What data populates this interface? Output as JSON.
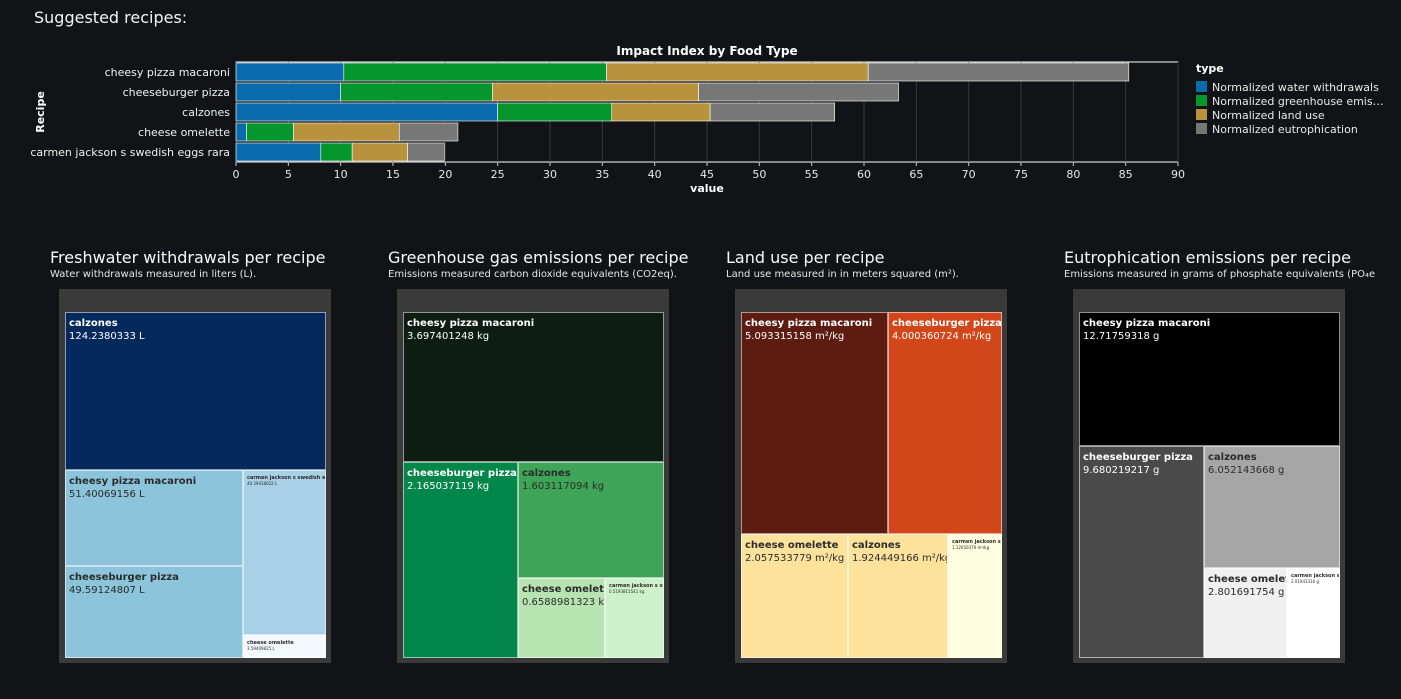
{
  "page": {
    "heading": "Suggested recipes:"
  },
  "chart_data": [
    {
      "type": "bar",
      "stacked": true,
      "orientation": "horizontal",
      "title": "Impact Index by Food Type",
      "xlabel": "value",
      "ylabel": "Recipe",
      "xlim": [
        0,
        90
      ],
      "xticks": [
        0,
        5,
        10,
        15,
        20,
        25,
        30,
        35,
        40,
        45,
        50,
        55,
        60,
        65,
        70,
        75,
        80,
        85,
        90
      ],
      "grid": true,
      "legend_title": "type",
      "legend_position": "right",
      "categories": [
        "cheesy pizza macaroni",
        "cheeseburger pizza",
        "calzones",
        "cheese omelette",
        "carmen jackson s swedish eggs rara"
      ],
      "series": [
        {
          "name": "Normalized water withdrawals",
          "legend_label": "Normalized water withdrawals",
          "color": "#0a6bad",
          "values": [
            10.3,
            10.0,
            25.0,
            1.0,
            8.1
          ]
        },
        {
          "name": "Normalized greenhouse emissions",
          "legend_label": "Normalized greenhouse emis…",
          "color": "#05972d",
          "values": [
            25.1,
            14.5,
            10.9,
            4.5,
            3.0
          ]
        },
        {
          "name": "Normalized land use",
          "legend_label": "Normalized land use",
          "color": "#b8923c",
          "values": [
            25.0,
            19.7,
            9.4,
            10.1,
            5.3
          ]
        },
        {
          "name": "Normalized eutrophication",
          "legend_label": "Normalized eutrophication",
          "color": "#777777",
          "values": [
            24.9,
            19.1,
            11.9,
            5.6,
            3.5
          ]
        }
      ]
    },
    {
      "type": "treemap",
      "title": "Freshwater withdrawals per recipe",
      "subtitle": "Water withdrawals measured in liters (L).",
      "unit": "L",
      "items": [
        {
          "name": "calzones",
          "value": "124.2380333 L",
          "color": "#05295c",
          "text": "#ffffff"
        },
        {
          "name": "cheesy pizza macaroni",
          "value": "51.40069156 L",
          "color": "#8cc4dc",
          "text": "#2b2b2b"
        },
        {
          "name": "cheeseburger pizza",
          "value": "49.59124807 L",
          "color": "#8cc4dc",
          "text": "#2b2b2b"
        },
        {
          "name": "carmen jackson s swedish eggs rara",
          "value": "40.39418622 L",
          "color": "#a8d0e6",
          "text": "#2b2b2b"
        },
        {
          "name": "cheese omelette",
          "value": "3.59409825 L",
          "color": "#f4f9fe",
          "text": "#2b2b2b"
        }
      ]
    },
    {
      "type": "treemap",
      "title": "Greenhouse gas emissions per recipe",
      "subtitle": "Emissions measured carbon dioxide equivalents (CO2eq).",
      "unit": "kg",
      "items": [
        {
          "name": "cheesy pizza macaroni",
          "value": "3.697401248 kg",
          "color": "#0e1d13",
          "text": "#ffffff"
        },
        {
          "name": "cheeseburger pizza",
          "value": "2.165037119 kg",
          "color": "#03864a",
          "text": "#ffffff"
        },
        {
          "name": "calzones",
          "value": "1.603117094 kg",
          "color": "#3ea457",
          "text": "#2b2b2b"
        },
        {
          "name": "cheese omelette",
          "value": "0.6588981323 kg",
          "color": "#b8e4b2",
          "text": "#2b2b2b"
        },
        {
          "name": "carmen jackson s swedish eggs rara",
          "value": "0.5193815541 kg",
          "color": "#cdf2cb",
          "text": "#2b2b2b"
        }
      ]
    },
    {
      "type": "treemap",
      "title": "Land use per recipe",
      "subtitle": "Land use measured in in meters squared (m²).",
      "unit": "m²/kg",
      "items": [
        {
          "name": "cheesy pizza macaroni",
          "value": "5.093315158 m²/kg",
          "color": "#5d1b11",
          "text": "#ffffff"
        },
        {
          "name": "cheeseburger pizza",
          "value": "4.000360724 m²/kg",
          "color": "#d2461a",
          "text": "#ffffff"
        },
        {
          "name": "cheese omelette",
          "value": "2.057533779 m²/kg",
          "color": "#fde29c",
          "text": "#2b2b2b"
        },
        {
          "name": "calzones",
          "value": "1.924449166 m²/kg",
          "color": "#fde29c",
          "text": "#2b2b2b"
        },
        {
          "name": "carmen jackson s swedish eggs rara",
          "value": "1.12050379 m²/kg",
          "color": "#fefddf",
          "text": "#2b2b2b"
        }
      ]
    },
    {
      "type": "treemap",
      "title": "Eutrophication emissions per recipe",
      "subtitle": "Emissions measured in grams of phosphate equivalents (PO₄e",
      "unit": "g",
      "items": [
        {
          "name": "cheesy pizza macaroni",
          "value": "12.71759318 g",
          "color": "#000000",
          "text": "#ffffff"
        },
        {
          "name": "cheeseburger pizza",
          "value": "9.680219217 g",
          "color": "#4a4a4a",
          "text": "#ffffff"
        },
        {
          "name": "calzones",
          "value": "6.052143668 g",
          "color": "#a6a6a6",
          "text": "#2b2b2b"
        },
        {
          "name": "cheese omelette",
          "value": "2.801691754 g",
          "color": "#f0f0f0",
          "text": "#2b2b2b"
        },
        {
          "name": "carmen jackson s swedish eggs rara",
          "value": "2.01941316 g",
          "color": "#ffffff",
          "text": "#2b2b2b"
        }
      ]
    }
  ]
}
